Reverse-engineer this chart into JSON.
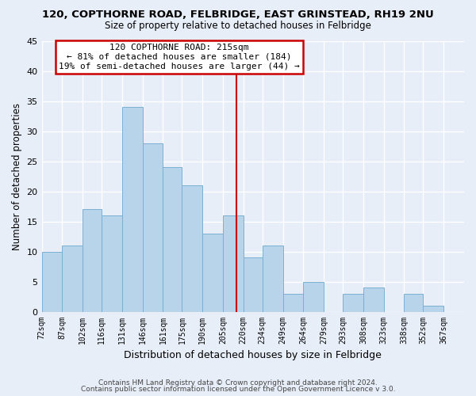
{
  "title1": "120, COPTHORNE ROAD, FELBRIDGE, EAST GRINSTEAD, RH19 2NU",
  "title2": "Size of property relative to detached houses in Felbridge",
  "xlabel": "Distribution of detached houses by size in Felbridge",
  "ylabel": "Number of detached properties",
  "footer1": "Contains HM Land Registry data © Crown copyright and database right 2024.",
  "footer2": "Contains public sector information licensed under the Open Government Licence v 3.0.",
  "bin_labels": [
    "72sqm",
    "87sqm",
    "102sqm",
    "116sqm",
    "131sqm",
    "146sqm",
    "161sqm",
    "175sqm",
    "190sqm",
    "205sqm",
    "220sqm",
    "234sqm",
    "249sqm",
    "264sqm",
    "279sqm",
    "293sqm",
    "308sqm",
    "323sqm",
    "338sqm",
    "352sqm",
    "367sqm"
  ],
  "bin_edges": [
    72,
    87,
    102,
    116,
    131,
    146,
    161,
    175,
    190,
    205,
    220,
    234,
    249,
    264,
    279,
    293,
    308,
    323,
    338,
    352,
    367,
    382
  ],
  "counts": [
    10,
    11,
    17,
    16,
    34,
    28,
    24,
    21,
    13,
    16,
    9,
    11,
    3,
    5,
    0,
    3,
    4,
    0,
    3,
    1,
    0
  ],
  "bar_color": "#b8d4ea",
  "bar_edgecolor": "#7ab0d4",
  "reference_line_x": 215,
  "reference_line_color": "#cc0000",
  "annotation_title": "120 COPTHORNE ROAD: 215sqm",
  "annotation_line1": "← 81% of detached houses are smaller (184)",
  "annotation_line2": "19% of semi-detached houses are larger (44) →",
  "annotation_box_edgecolor": "#cc0000",
  "ylim": [
    0,
    45
  ],
  "yticks": [
    0,
    5,
    10,
    15,
    20,
    25,
    30,
    35,
    40,
    45
  ],
  "background_color": "#e8eef8",
  "grid_color": "white"
}
